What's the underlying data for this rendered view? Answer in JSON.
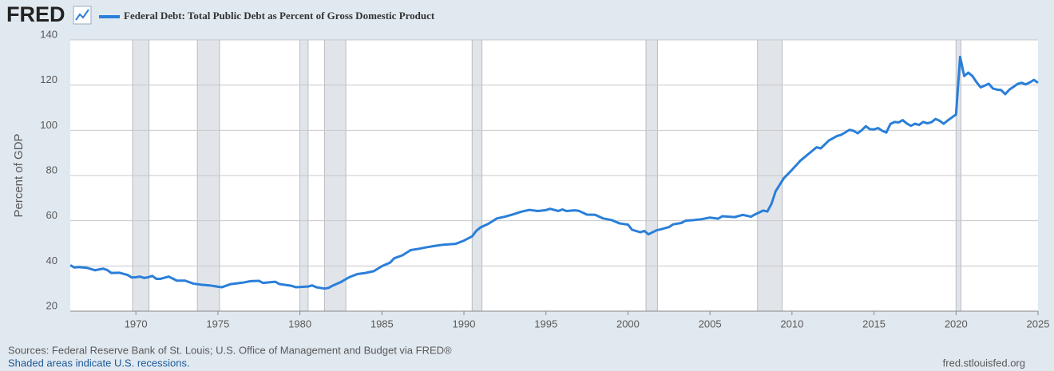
{
  "logo": "FRED",
  "chart_data": {
    "type": "line",
    "ylabel": "Percent of GDP",
    "sources": "Sources: Federal Reserve Bank of St. Louis; U.S. Office of Management and Budget via FRED®",
    "note": "Shaded areas indicate U.S. recessions.",
    "url": "fred.stlouisfed.org",
    "xlim": [
      1966,
      2025
    ],
    "ylim": [
      20,
      140
    ],
    "xticks": [
      1970,
      1975,
      1980,
      1985,
      1990,
      1995,
      2000,
      2005,
      2010,
      2015,
      2020,
      2025
    ],
    "yticks": [
      20,
      40,
      60,
      80,
      100,
      120,
      140
    ],
    "grid": true,
    "recessions": [
      [
        1969.8,
        1970.8
      ],
      [
        1973.75,
        1975.1
      ],
      [
        1980.0,
        1980.5
      ],
      [
        1981.5,
        1982.8
      ],
      [
        1990.5,
        1991.1
      ],
      [
        2001.1,
        2001.8
      ],
      [
        2007.9,
        2009.4
      ],
      [
        2020.0,
        2020.3
      ]
    ],
    "x": [
      1966,
      1966.25,
      1966.5,
      1967,
      1967.5,
      1968,
      1968.25,
      1968.5,
      1969,
      1969.5,
      1969.75,
      1970,
      1970.25,
      1970.5,
      1970.75,
      1971,
      1971.25,
      1971.5,
      1972,
      1972.5,
      1973,
      1973.5,
      1974,
      1974.5,
      1975,
      1975.25,
      1975.75,
      1976.5,
      1977,
      1977.5,
      1977.75,
      1978.5,
      1978.75,
      1979.5,
      1979.75,
      1980.5,
      1980.75,
      1981,
      1981.5,
      1981.75,
      1982,
      1982.5,
      1983,
      1983.5,
      1984,
      1984.5,
      1985,
      1985.5,
      1985.75,
      1986.25,
      1986.75,
      1987.25,
      1987.75,
      1988.25,
      1988.75,
      1989.5,
      1990,
      1990.5,
      1990.75,
      1991,
      1991.5,
      1992,
      1992.5,
      1993,
      1993.5,
      1994,
      1994.5,
      1995,
      1995.25,
      1995.75,
      1996,
      1996.25,
      1996.75,
      1997,
      1997.5,
      1998,
      1998.5,
      1999,
      1999.5,
      2000,
      2000.25,
      2000.75,
      2001,
      2001.25,
      2001.75,
      2002,
      2002.5,
      2002.75,
      2003.25,
      2003.5,
      2004,
      2004.5,
      2005,
      2005.5,
      2005.75,
      2006.5,
      2007,
      2007.5,
      2007.75,
      2008.25,
      2008.5,
      2008.75,
      2009,
      2009.5,
      2010,
      2010.5,
      2011,
      2011.5,
      2011.75,
      2012.25,
      2012.75,
      2013,
      2013.5,
      2013.75,
      2014,
      2014.25,
      2014.5,
      2014.75,
      2015,
      2015.25,
      2015.5,
      2015.75,
      2016,
      2016.25,
      2016.5,
      2016.75,
      2017,
      2017.25,
      2017.5,
      2017.75,
      2018,
      2018.25,
      2018.5,
      2018.75,
      2019,
      2019.25,
      2019.5,
      2019.75,
      2020,
      2020.25,
      2020.5,
      2020.75,
      2021,
      2021.25,
      2021.5,
      2021.75,
      2022,
      2022.25,
      2022.5,
      2022.75,
      2023,
      2023.25,
      2023.5,
      2023.75,
      2024,
      2024.25,
      2024.5,
      2024.75,
      2025
    ],
    "series": [
      {
        "name": "Federal Debt: Total Public Debt as Percent of Gross Domestic Product",
        "color": "#2a7fd9",
        "values": [
          40.3,
          39.3,
          39.5,
          39.2,
          38.1,
          38.8,
          38.2,
          36.9,
          37.0,
          36.0,
          34.9,
          35.0,
          35.3,
          34.7,
          35.0,
          35.6,
          34.3,
          34.3,
          35.3,
          33.5,
          33.5,
          32.2,
          31.7,
          31.4,
          30.8,
          30.6,
          31.9,
          32.6,
          33.3,
          33.4,
          32.5,
          33.0,
          32.0,
          31.2,
          30.6,
          30.9,
          31.4,
          30.6,
          30.0,
          30.3,
          31.3,
          32.9,
          35.0,
          36.4,
          36.9,
          37.7,
          39.9,
          41.5,
          43.4,
          44.7,
          47.0,
          47.6,
          48.3,
          48.9,
          49.4,
          49.8,
          51.2,
          53.1,
          55.5,
          57.0,
          58.7,
          61.0,
          61.8,
          62.8,
          64.0,
          64.8,
          64.3,
          64.7,
          65.3,
          64.3,
          65.0,
          64.3,
          64.6,
          64.4,
          62.7,
          62.6,
          61.0,
          60.3,
          58.8,
          58.3,
          56.0,
          54.9,
          55.5,
          54.0,
          55.8,
          56.2,
          57.2,
          58.4,
          59.0,
          60.0,
          60.3,
          60.7,
          61.4,
          60.9,
          62.0,
          61.6,
          62.6,
          61.8,
          62.8,
          64.5,
          64.1,
          67.5,
          73.0,
          78.8,
          82.5,
          86.5,
          89.5,
          92.5,
          92.0,
          95.5,
          97.5,
          98.0,
          100.2,
          99.8,
          98.7,
          100.0,
          101.8,
          100.5,
          100.4,
          101.0,
          99.8,
          99.0,
          102.8,
          103.7,
          103.5,
          104.5,
          103.0,
          102.0,
          102.9,
          102.4,
          103.7,
          103.1,
          103.6,
          105.0,
          104.2,
          102.9,
          104.4,
          105.7,
          107.0,
          132.5,
          124.0,
          125.5,
          124.0,
          121.3,
          119.0,
          119.8,
          120.6,
          118.5,
          118.0,
          117.8,
          116.0,
          118.0,
          119.2,
          120.5,
          121.0,
          120.3,
          121.2,
          122.3,
          121.0
        ]
      }
    ]
  }
}
